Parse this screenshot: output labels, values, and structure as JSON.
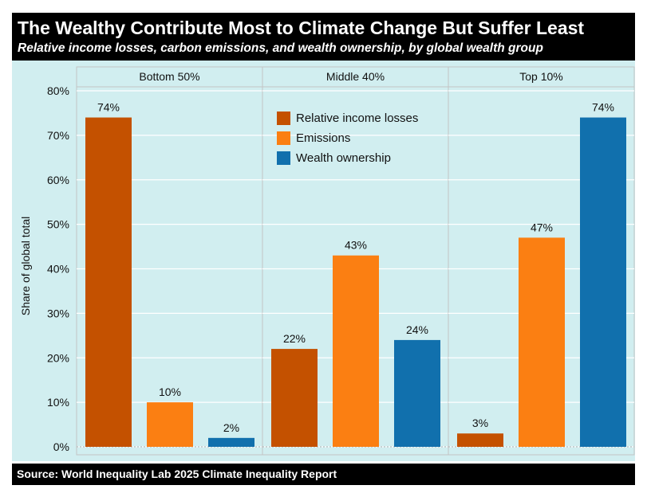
{
  "header": {
    "title": "The Wealthy Contribute Most to Climate Change But Suffer Least",
    "subtitle": "Relative income losses, carbon emissions, and wealth ownership, by global wealth group"
  },
  "footer": {
    "source": "Source: World Inequality Lab 2025 Climate Inequality Report"
  },
  "colors": {
    "Relative income losses": "#c45100",
    "Emissions": "#fb7f12",
    "Wealth ownership": "#1170ad"
  },
  "chart_data": {
    "type": "bar",
    "facets": [
      "Bottom 50%",
      "Middle 40%",
      "Top 10%"
    ],
    "series": [
      {
        "name": "Relative income losses",
        "values": [
          74,
          22,
          3
        ]
      },
      {
        "name": "Emissions",
        "values": [
          10,
          43,
          47
        ]
      },
      {
        "name": "Wealth ownership",
        "values": [
          2,
          24,
          74
        ]
      }
    ],
    "ylabel": "Share of global total",
    "ylim": [
      0,
      80
    ],
    "yticks": [
      0,
      10,
      20,
      30,
      40,
      50,
      60,
      70,
      80
    ],
    "tick_suffix": "%",
    "legend_position": "top-center",
    "grid": true
  }
}
